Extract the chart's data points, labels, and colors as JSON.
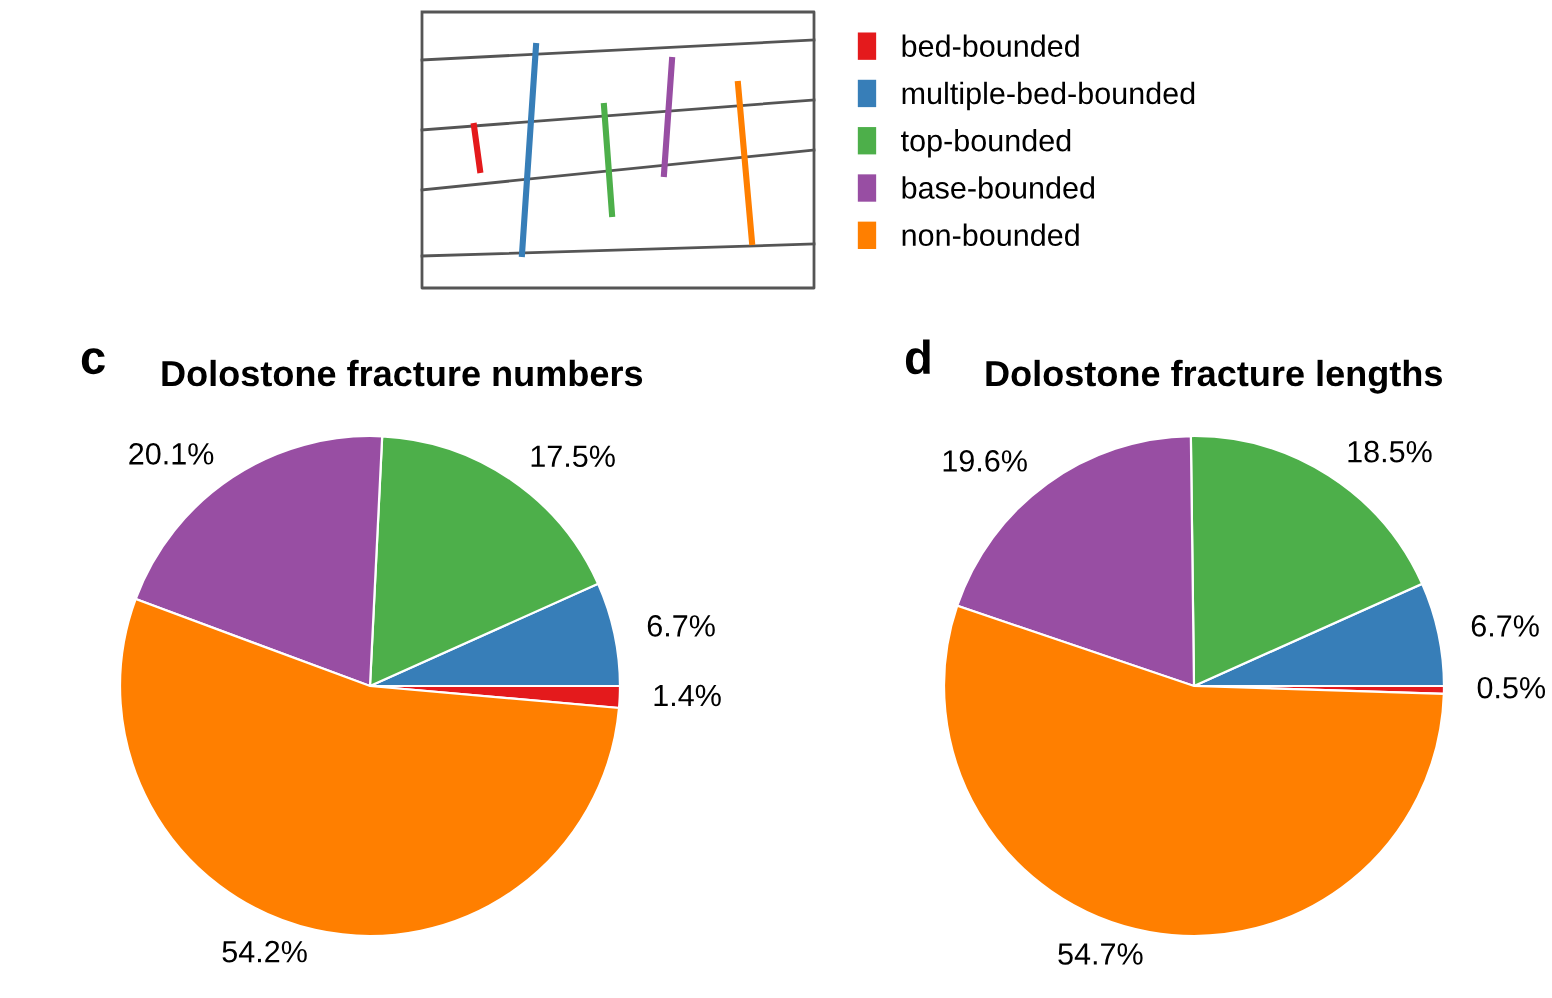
{
  "chart_data": [
    {
      "type": "pie",
      "title": "Dolostone fracture numbers",
      "annotations": [
        "c"
      ],
      "legend": "top",
      "categories": [
        "bed-bounded",
        "multiple-bed-bounded",
        "top-bounded",
        "base-bounded",
        "non-bounded"
      ],
      "values": [
        1.4,
        6.7,
        17.5,
        20.1,
        54.2
      ],
      "value_labels": [
        "1.4%",
        "6.7%",
        "17.5%",
        "20.1%",
        "54.2%"
      ],
      "colors": [
        "#e41a1c",
        "#377eb8",
        "#4daf4a",
        "#984ea3",
        "#ff7f00"
      ]
    },
    {
      "type": "pie",
      "title": "Dolostone fracture lengths",
      "annotations": [
        "d"
      ],
      "categories": [
        null,
        null,
        null,
        null,
        null
      ],
      "values": [
        0.5,
        6.7,
        18.5,
        19.6,
        54.7
      ],
      "value_labels": [
        "0.5%",
        "6.7%",
        "18.5%",
        "19.6%",
        "54.7%"
      ],
      "colors": [
        "#e41a1c",
        "#377eb8",
        "#4daf4a",
        "#984ea3",
        "#ff7f00"
      ]
    }
  ]
}
